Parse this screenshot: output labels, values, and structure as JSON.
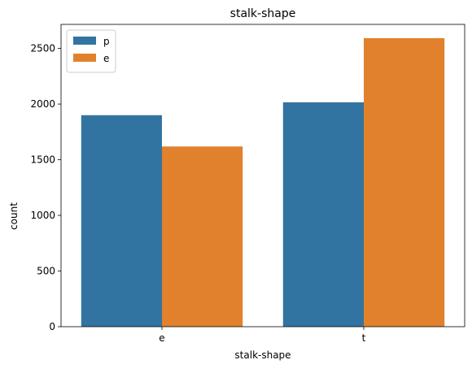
{
  "chart_data": {
    "type": "bar",
    "title": "stalk-shape",
    "xlabel": "stalk-shape",
    "ylabel": "count",
    "categories": [
      "e",
      "t"
    ],
    "series": [
      {
        "name": "p",
        "values": [
          1900,
          2016
        ],
        "color": "#3274a1"
      },
      {
        "name": "e",
        "values": [
          1619,
          2592
        ],
        "color": "#e1812c"
      }
    ],
    "ylim": [
      0,
      2716
    ],
    "yticks": [
      0,
      500,
      1000,
      1500,
      2000,
      2500
    ],
    "grid": false,
    "legend": "top-left"
  }
}
